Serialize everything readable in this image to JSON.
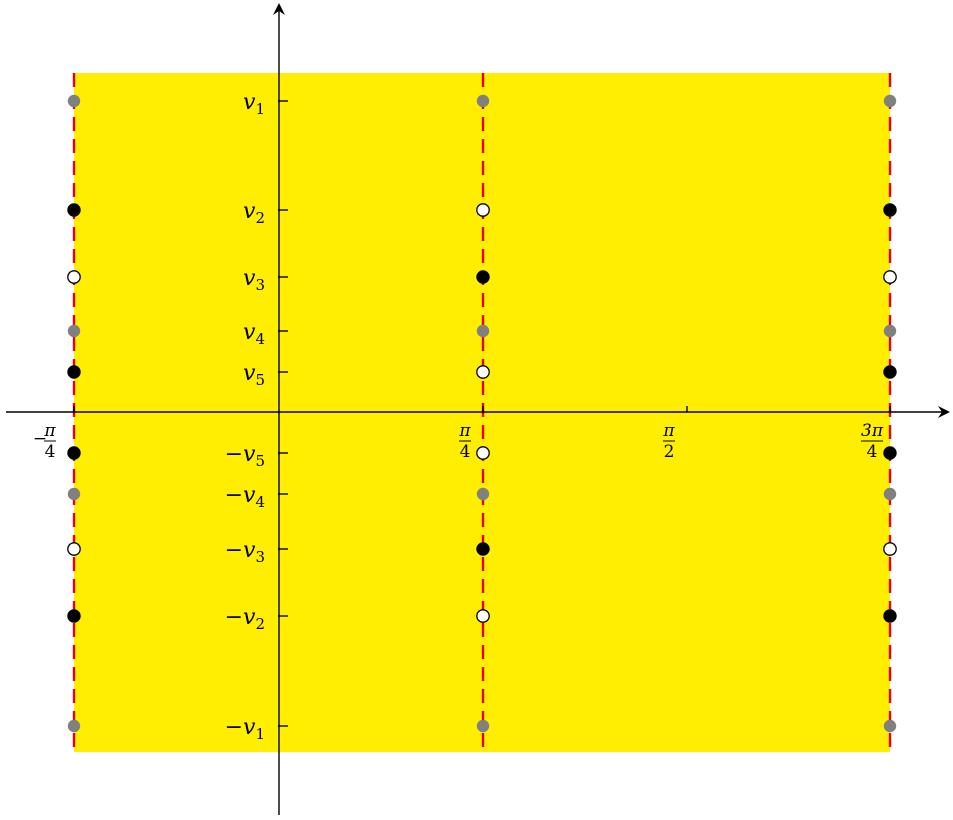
{
  "colors": {
    "region": "#FFEE00",
    "boundary": "#E3001B",
    "axis": "#000000",
    "point_black": "#000000",
    "point_white": "#FFFFFF",
    "point_gray": "#808080"
  },
  "y_ticks": [
    {
      "sign": "",
      "base": "v",
      "sub": "1"
    },
    {
      "sign": "",
      "base": "v",
      "sub": "2"
    },
    {
      "sign": "",
      "base": "v",
      "sub": "3"
    },
    {
      "sign": "",
      "base": "v",
      "sub": "4"
    },
    {
      "sign": "",
      "base": "v",
      "sub": "5"
    },
    {
      "sign": "−",
      "base": "v",
      "sub": "5"
    },
    {
      "sign": "−",
      "base": "v",
      "sub": "4"
    },
    {
      "sign": "−",
      "base": "v",
      "sub": "3"
    },
    {
      "sign": "−",
      "base": "v",
      "sub": "2"
    },
    {
      "sign": "−",
      "base": "v",
      "sub": "1"
    }
  ],
  "x_ticks": [
    {
      "sign": "−",
      "num": "π",
      "den": "4"
    },
    {
      "sign": "",
      "num": "π",
      "den": "4"
    },
    {
      "sign": "",
      "num": "π",
      "den": "2"
    },
    {
      "sign": "",
      "num": "3π",
      "den": "4"
    }
  ],
  "boundary_lines": [
    "−π/4",
    "π/4",
    "3π/4"
  ],
  "points": {
    "column_left": [
      "gray",
      "black",
      "white",
      "gray",
      "black",
      "black",
      "gray",
      "white",
      "black",
      "gray"
    ],
    "column_middle": [
      "gray",
      "white",
      "black",
      "gray",
      "white",
      "white",
      "gray",
      "black",
      "white",
      "gray"
    ],
    "column_right": [
      "gray",
      "black",
      "white",
      "gray",
      "black",
      "black",
      "gray",
      "white",
      "black",
      "gray"
    ]
  }
}
